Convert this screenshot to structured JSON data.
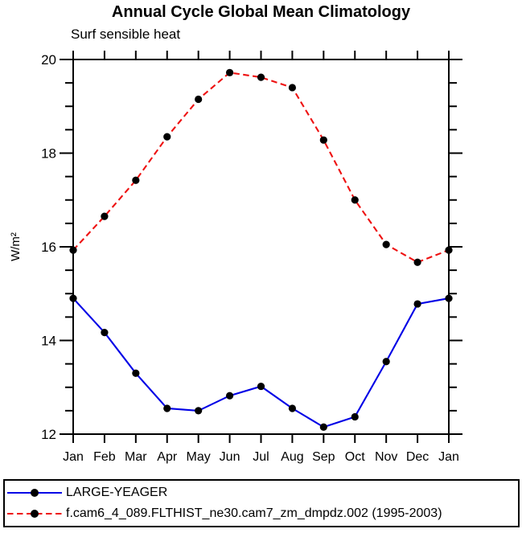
{
  "chart_data": {
    "type": "line",
    "title": "Annual Cycle Global Mean Climatology",
    "subtitle": "Surf sensible heat",
    "ylabel": "W/m²",
    "xlabel": "",
    "categories": [
      "Jan",
      "Feb",
      "Mar",
      "Apr",
      "May",
      "Jun",
      "Jul",
      "Aug",
      "Sep",
      "Oct",
      "Nov",
      "Dec",
      "Jan"
    ],
    "ylim": [
      12,
      20
    ],
    "yticks_major": [
      12,
      14,
      16,
      18,
      20
    ],
    "ytick_minor_step": 0.5,
    "grid": false,
    "legend_position": "bottom",
    "marker_color": "#000000",
    "marker_shape": "filled-circle",
    "series": [
      {
        "name": "LARGE-YEAGER",
        "color": "#0000e6",
        "line_style": "solid",
        "values": [
          14.9,
          14.17,
          13.3,
          12.55,
          12.5,
          12.82,
          13.02,
          12.55,
          12.15,
          12.37,
          13.55,
          14.78,
          14.9
        ]
      },
      {
        "name": "f.cam6_4_089.FLTHIST_ne30.cam7_zm_dmpdz.002 (1995-2003)",
        "color": "#ee1111",
        "line_style": "dashed",
        "values": [
          15.93,
          16.65,
          17.42,
          18.35,
          19.15,
          19.72,
          19.62,
          19.4,
          18.28,
          17.0,
          16.05,
          15.67,
          15.93
        ]
      }
    ]
  }
}
